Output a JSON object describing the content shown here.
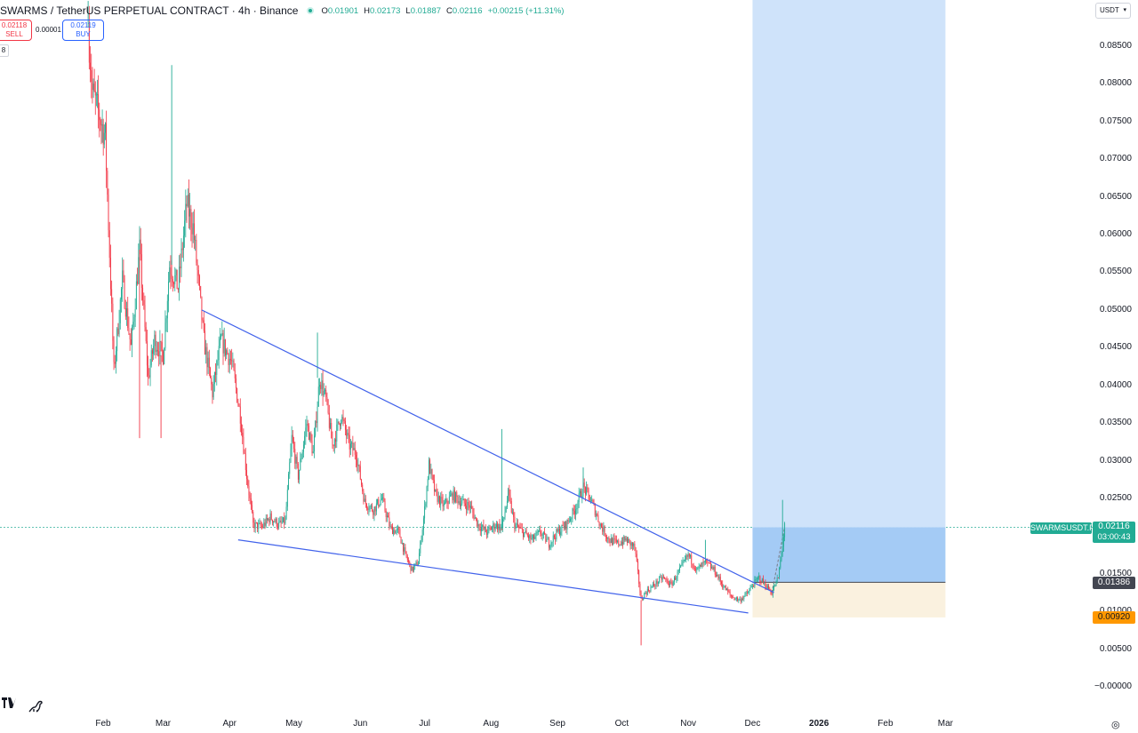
{
  "header": {
    "symbol": "SWARMS / TetherUS PERPETUAL CONTRACT · 4h · Binance",
    "open_label": "O",
    "open": "0.01901",
    "high_label": "H",
    "high": "0.02173",
    "low_label": "L",
    "low": "0.01887",
    "close_label": "C",
    "close": "0.02116",
    "change": "+0.00215 (+11.31%)"
  },
  "trade": {
    "sell_price": "0.02118",
    "sell_label": "SELL",
    "spread": "0.00001",
    "buy_price": "0.02119",
    "buy_label": "BUY",
    "volume_tag": "8"
  },
  "currency": {
    "label": "USDT",
    "caret": "▾"
  },
  "price_tags": {
    "symbol_tag": "SWARMSUSDT.P",
    "current_price": "0.02116",
    "countdown": "03:00:43",
    "entry_price": "0.01386",
    "stop_price": "0.00920"
  },
  "colors": {
    "up": "#22ab94",
    "down": "#f23645",
    "trendline": "#4263eb",
    "target_zone": "#cfe3fa",
    "profit_zone": "#a4cbf5",
    "risk_zone": "#faf1df",
    "entry_line": "#434651",
    "current_line": "#22ab94"
  },
  "icons": {
    "logo": "tradingview-logo-icon",
    "replay": "dinosaur-icon",
    "settings": "settings-icon"
  },
  "chart_data": {
    "type": "candlestick",
    "timeframe": "4h",
    "y_axis": {
      "ticks": [
        "0.08500",
        "0.08000",
        "0.07500",
        "0.07000",
        "0.06500",
        "0.06000",
        "0.05500",
        "0.05000",
        "0.04500",
        "0.04000",
        "0.03500",
        "0.03000",
        "0.02500",
        "0.01500",
        "0.01000",
        "0.00500",
        "−0.00000"
      ],
      "range": [
        -0.0005,
        0.0915
      ]
    },
    "x_axis": {
      "ticks": [
        "Feb",
        "Mar",
        "Apr",
        "May",
        "Jun",
        "Jul",
        "Aug",
        "Sep",
        "Oct",
        "Nov",
        "Dec",
        "2026",
        "Feb",
        "Mar"
      ],
      "tick_dates": [
        "2025-02-01",
        "2025-03-01",
        "2025-04-01",
        "2025-05-01",
        "2025-06-01",
        "2025-07-01",
        "2025-08-01",
        "2025-09-01",
        "2025-10-01",
        "2025-11-01",
        "2025-12-01",
        "2026-01-01",
        "2026-02-01",
        "2026-03-01"
      ],
      "bold_tick": "2026"
    },
    "price_path": [
      [
        "2025-01-25",
        0.0875
      ],
      [
        "2025-01-27",
        0.079
      ],
      [
        "2025-02-02",
        0.073
      ],
      [
        "2025-02-06",
        0.042
      ],
      [
        "2025-02-10",
        0.054
      ],
      [
        "2025-02-14",
        0.045
      ],
      [
        "2025-02-18",
        0.058
      ],
      [
        "2025-02-22",
        0.041
      ],
      [
        "2025-02-25",
        0.046
      ],
      [
        "2025-03-01",
        0.044
      ],
      [
        "2025-03-04",
        0.056
      ],
      [
        "2025-03-08",
        0.053
      ],
      [
        "2025-03-12",
        0.064
      ],
      [
        "2025-03-15",
        0.061
      ],
      [
        "2025-03-20",
        0.046
      ],
      [
        "2025-03-24",
        0.039
      ],
      [
        "2025-03-28",
        0.046
      ],
      [
        "2025-04-02",
        0.043
      ],
      [
        "2025-04-06",
        0.036
      ],
      [
        "2025-04-09",
        0.028
      ],
      [
        "2025-04-12",
        0.0215
      ],
      [
        "2025-04-16",
        0.0212
      ],
      [
        "2025-04-20",
        0.0225
      ],
      [
        "2025-04-24",
        0.0215
      ],
      [
        "2025-04-27",
        0.022
      ],
      [
        "2025-04-30",
        0.033
      ],
      [
        "2025-05-03",
        0.028
      ],
      [
        "2025-05-07",
        0.035
      ],
      [
        "2025-05-10",
        0.031
      ],
      [
        "2025-05-13",
        0.041
      ],
      [
        "2025-05-16",
        0.038
      ],
      [
        "2025-05-19",
        0.032
      ],
      [
        "2025-05-23",
        0.036
      ],
      [
        "2025-05-27",
        0.032
      ],
      [
        "2025-05-30",
        0.031
      ],
      [
        "2025-06-03",
        0.0245
      ],
      [
        "2025-06-07",
        0.0235
      ],
      [
        "2025-06-11",
        0.025
      ],
      [
        "2025-06-15",
        0.021
      ],
      [
        "2025-06-19",
        0.0205
      ],
      [
        "2025-06-22",
        0.0175
      ],
      [
        "2025-06-25",
        0.0155
      ],
      [
        "2025-06-28",
        0.0165
      ],
      [
        "2025-07-01",
        0.0235
      ],
      [
        "2025-07-03",
        0.0295
      ],
      [
        "2025-07-06",
        0.0255
      ],
      [
        "2025-07-10",
        0.024
      ],
      [
        "2025-07-14",
        0.0255
      ],
      [
        "2025-07-18",
        0.0245
      ],
      [
        "2025-07-22",
        0.024
      ],
      [
        "2025-07-26",
        0.0215
      ],
      [
        "2025-07-30",
        0.0205
      ],
      [
        "2025-08-03",
        0.0215
      ],
      [
        "2025-08-06",
        0.021
      ],
      [
        "2025-08-09",
        0.0255
      ],
      [
        "2025-08-12",
        0.0215
      ],
      [
        "2025-08-16",
        0.0205
      ],
      [
        "2025-08-20",
        0.0195
      ],
      [
        "2025-08-24",
        0.0205
      ],
      [
        "2025-08-28",
        0.019
      ],
      [
        "2025-09-01",
        0.0205
      ],
      [
        "2025-09-05",
        0.0215
      ],
      [
        "2025-09-09",
        0.0235
      ],
      [
        "2025-09-13",
        0.0265
      ],
      [
        "2025-09-17",
        0.0245
      ],
      [
        "2025-09-21",
        0.0215
      ],
      [
        "2025-09-25",
        0.0195
      ],
      [
        "2025-09-29",
        0.019
      ],
      [
        "2025-10-03",
        0.0195
      ],
      [
        "2025-10-07",
        0.0185
      ],
      [
        "2025-10-10",
        0.0115
      ],
      [
        "2025-10-12",
        0.0125
      ],
      [
        "2025-10-16",
        0.0135
      ],
      [
        "2025-10-20",
        0.0145
      ],
      [
        "2025-10-24",
        0.0135
      ],
      [
        "2025-10-28",
        0.0155
      ],
      [
        "2025-11-01",
        0.0175
      ],
      [
        "2025-11-05",
        0.0155
      ],
      [
        "2025-11-09",
        0.0165
      ],
      [
        "2025-11-13",
        0.0155
      ],
      [
        "2025-11-17",
        0.0135
      ],
      [
        "2025-11-21",
        0.012
      ],
      [
        "2025-11-25",
        0.0115
      ],
      [
        "2025-11-29",
        0.0125
      ],
      [
        "2025-12-01",
        0.0135
      ],
      [
        "2025-12-04",
        0.0145
      ],
      [
        "2025-12-07",
        0.0135
      ],
      [
        "2025-12-10",
        0.0125
      ],
      [
        "2025-12-13",
        0.0145
      ],
      [
        "2025-12-15",
        0.01886
      ],
      [
        "2025-12-16",
        0.02116
      ]
    ],
    "wicks": [
      [
        "2025-01-25",
        0.091
      ],
      [
        "2025-03-05",
        0.0825
      ],
      [
        "2025-05-12",
        0.047
      ],
      [
        "2025-08-06",
        0.0342
      ],
      [
        "2025-09-13",
        0.0291
      ],
      [
        "2025-10-10",
        0.0055
      ],
      [
        "2025-11-09",
        0.0195
      ],
      [
        "2025-12-15",
        0.0248
      ],
      [
        "2025-12-16",
        0.02173
      ],
      [
        "2025-02-18",
        0.033
      ],
      [
        "2025-02-28",
        0.033
      ]
    ],
    "trendlines": [
      {
        "from": [
          "2025-03-19",
          0.05
        ],
        "to": [
          "2025-12-11",
          0.0125
        ]
      },
      {
        "from": [
          "2025-04-05",
          0.0195
        ],
        "to": [
          "2025-11-29",
          0.0098
        ]
      }
    ],
    "position": {
      "side": "long",
      "start": "2025-12-01",
      "end": "2026-03-01",
      "entry": 0.01386,
      "stop": 0.0092,
      "target": 0.0915,
      "current": 0.02116
    }
  }
}
